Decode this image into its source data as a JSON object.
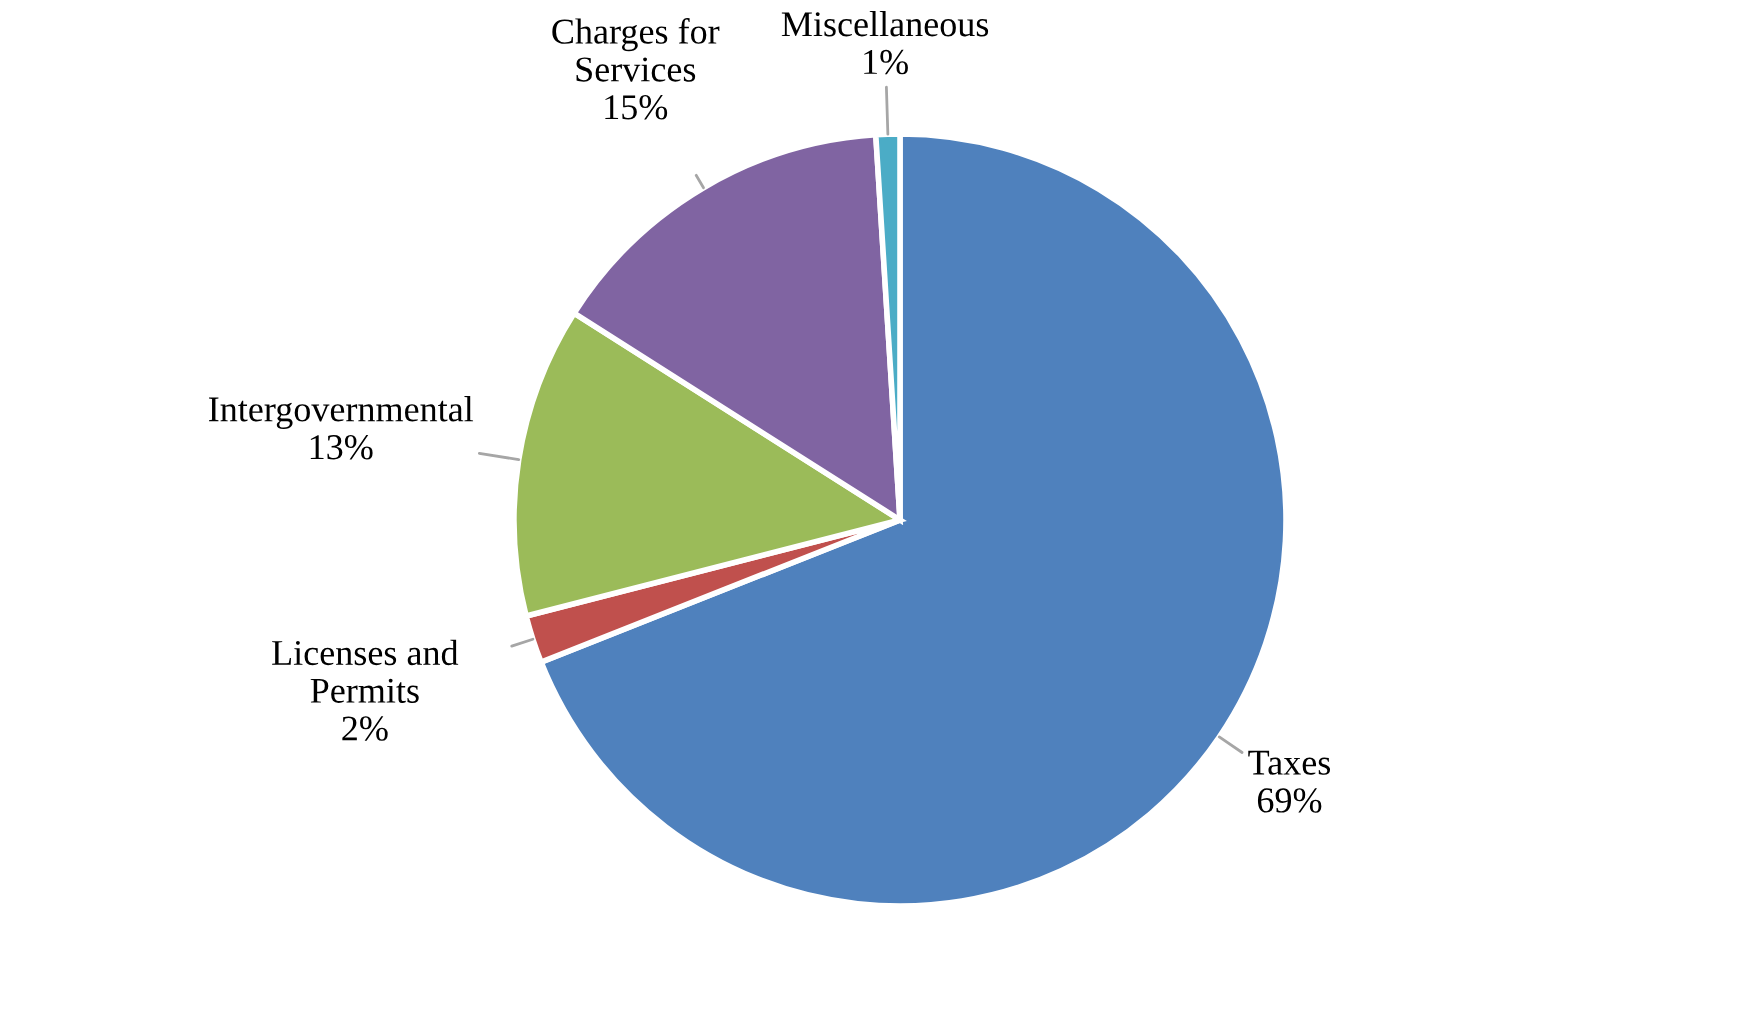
{
  "chart_data": {
    "type": "pie",
    "categories": [
      "Taxes",
      "Licenses and\nPermits",
      "Intergovernmental",
      "Charges for\nServices",
      "Miscellaneous"
    ],
    "values": [
      69,
      2,
      13,
      15,
      1
    ],
    "value_labels": [
      "69%",
      "2%",
      "13%",
      "15%",
      "1%"
    ],
    "colors": [
      "#4f81bd",
      "#c0504d",
      "#9bbb59",
      "#8064a2",
      "#4bacc6"
    ],
    "legend": false
  }
}
